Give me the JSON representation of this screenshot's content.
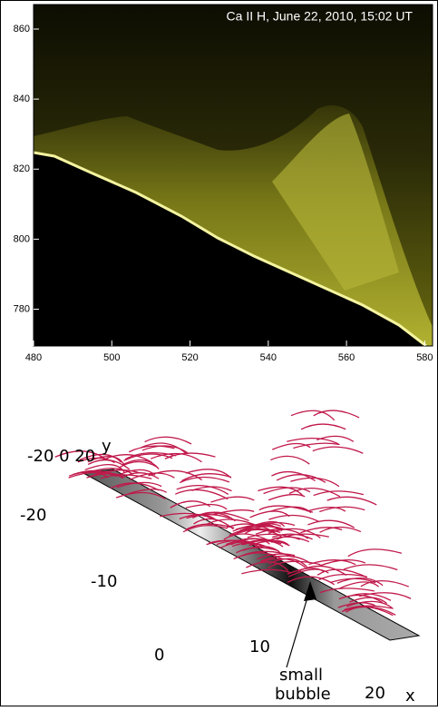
{
  "image_panel": {
    "caption": "Ca II H, June 22, 2010, 15:02 UT",
    "xlim": [
      480,
      582
    ],
    "xticks": [
      480,
      500,
      520,
      540,
      560,
      580
    ],
    "ylim": [
      769.5,
      867
    ],
    "yticks": [
      780,
      800,
      820,
      840,
      860
    ]
  },
  "model_panel": {
    "y_axis_ticks": "-20 0 20",
    "y_axis_label": "y",
    "x_axis_ticks": [
      "-20",
      "-10",
      "0",
      "10",
      "20"
    ],
    "x_axis_label": "x",
    "annotation": [
      "small",
      "bubble"
    ]
  }
}
